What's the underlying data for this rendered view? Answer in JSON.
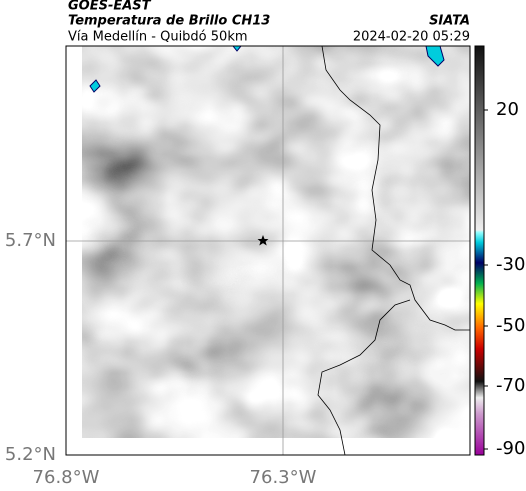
{
  "header": {
    "satellite": "GOES-EAST",
    "product": "Temperatura de Brillo CH13",
    "region": "Vía Medellín - Quibdó 50km",
    "source": "SIATA",
    "datetime": "2024-02-20 05:29"
  },
  "map": {
    "lat_labels": [
      "5.7°N",
      "5.2°N"
    ],
    "lon_labels": [
      "76.8°W",
      "76.3°W"
    ]
  },
  "colorbar": {
    "ticks": [
      20,
      -30,
      -50,
      -70,
      -90
    ]
  }
}
